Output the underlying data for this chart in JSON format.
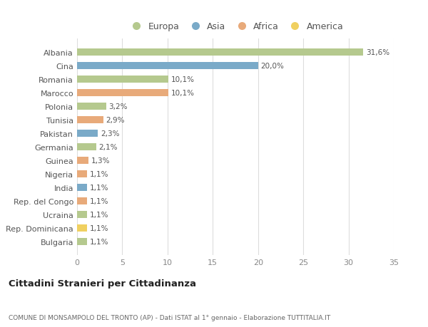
{
  "countries": [
    "Albania",
    "Cina",
    "Romania",
    "Marocco",
    "Polonia",
    "Tunisia",
    "Pakistan",
    "Germania",
    "Guinea",
    "Nigeria",
    "India",
    "Rep. del Congo",
    "Ucraina",
    "Rep. Dominicana",
    "Bulgaria"
  ],
  "values": [
    31.6,
    20.0,
    10.1,
    10.1,
    3.2,
    2.9,
    2.3,
    2.1,
    1.3,
    1.1,
    1.1,
    1.1,
    1.1,
    1.1,
    1.1
  ],
  "labels": [
    "31,6%",
    "20,0%",
    "10,1%",
    "10,1%",
    "3,2%",
    "2,9%",
    "2,3%",
    "2,1%",
    "1,3%",
    "1,1%",
    "1,1%",
    "1,1%",
    "1,1%",
    "1,1%",
    "1,1%"
  ],
  "continents": [
    "Europa",
    "Asia",
    "Europa",
    "Africa",
    "Europa",
    "Africa",
    "Asia",
    "Europa",
    "Africa",
    "Africa",
    "Asia",
    "Africa",
    "Europa",
    "America",
    "Europa"
  ],
  "colors": {
    "Europa": "#b5c98e",
    "Asia": "#7aaac8",
    "Africa": "#e8aa7a",
    "America": "#f0d060"
  },
  "legend_order": [
    "Europa",
    "Asia",
    "Africa",
    "America"
  ],
  "title": "Cittadini Stranieri per Cittadinanza",
  "subtitle": "COMUNE DI MONSAMPOLO DEL TRONTO (AP) - Dati ISTAT al 1° gennaio - Elaborazione TUTTITALIA.IT",
  "xlim": [
    0,
    35
  ],
  "xticks": [
    0,
    5,
    10,
    15,
    20,
    25,
    30,
    35
  ],
  "background_color": "#ffffff",
  "grid_color": "#dddddd"
}
